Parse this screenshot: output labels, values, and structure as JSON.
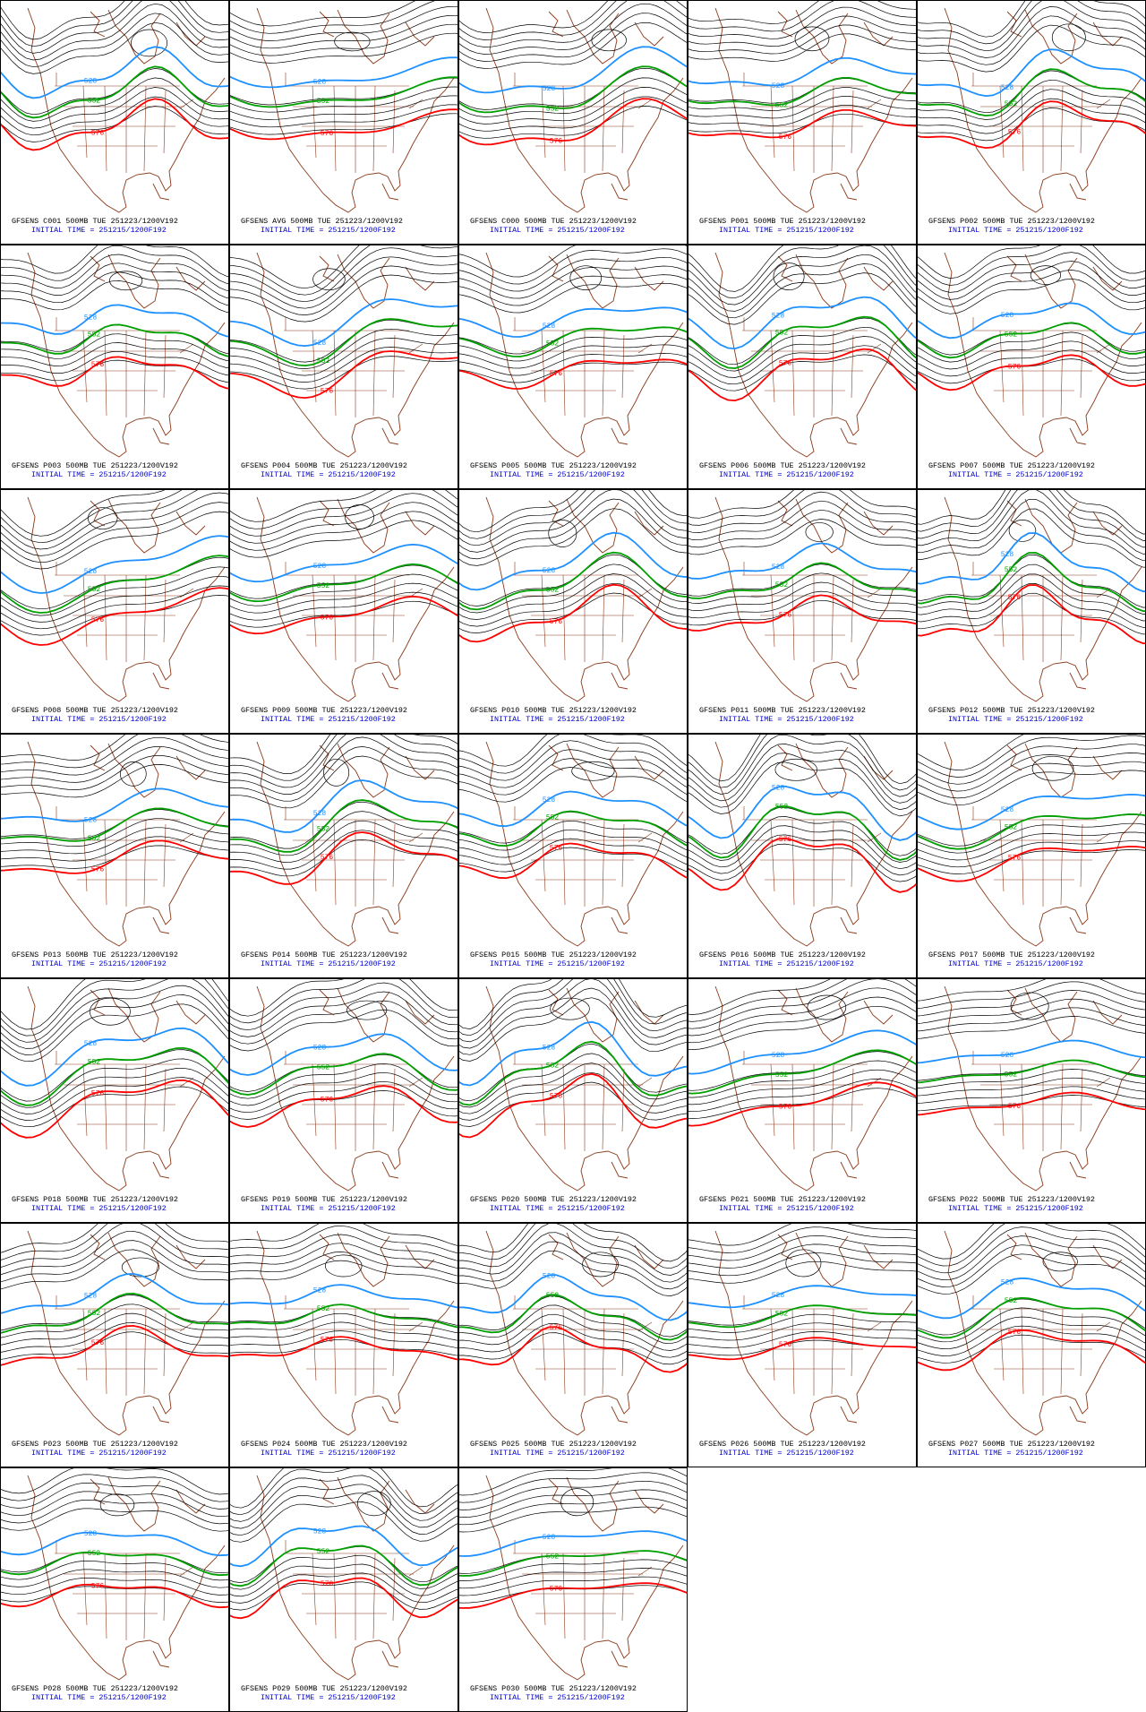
{
  "contour_labels": [
    "528",
    "552",
    "576"
  ],
  "panels": [
    {
      "title": "GFSENS C001 500MB TUE 251223/1200V192",
      "subtitle": "INITIAL TIME = 251215/1200F192"
    },
    {
      "title": "GFSENS AVG 500MB TUE 251223/1200V192",
      "subtitle": "INITIAL TIME = 251215/1200F192"
    },
    {
      "title": "GFSENS C000 500MB TUE 251223/1200V192",
      "subtitle": "INITIAL TIME = 251215/1200F192"
    },
    {
      "title": "GFSENS P001 500MB TUE 251223/1200V192",
      "subtitle": "INITIAL TIME = 251215/1200F192"
    },
    {
      "title": "GFSENS P002 500MB TUE 251223/1200V192",
      "subtitle": "INITIAL TIME = 251215/1200F192"
    },
    {
      "title": "GFSENS P003 500MB TUE 251223/1200V192",
      "subtitle": "INITIAL TIME = 251215/1200F192"
    },
    {
      "title": "GFSENS P004 500MB TUE 251223/1200V192",
      "subtitle": "INITIAL TIME = 251215/1200F192"
    },
    {
      "title": "GFSENS P005 500MB TUE 251223/1200V192",
      "subtitle": "INITIAL TIME = 251215/1200F192"
    },
    {
      "title": "GFSENS P006 500MB TUE 251223/1200V192",
      "subtitle": "INITIAL TIME = 251215/1200F192"
    },
    {
      "title": "GFSENS P007 500MB TUE 251223/1200V192",
      "subtitle": "INITIAL TIME = 251215/1200F192"
    },
    {
      "title": "GFSENS P008 500MB TUE 251223/1200V192",
      "subtitle": "INITIAL TIME = 251215/1200F192"
    },
    {
      "title": "GFSENS P009 500MB TUE 251223/1200V192",
      "subtitle": "INITIAL TIME = 251215/1200F192"
    },
    {
      "title": "GFSENS P010 500MB TUE 251223/1200V192",
      "subtitle": "INITIAL TIME = 251215/1200F192"
    },
    {
      "title": "GFSENS P011 500MB TUE 251223/1200V192",
      "subtitle": "INITIAL TIME = 251215/1200F192"
    },
    {
      "title": "GFSENS P012 500MB TUE 251223/1200V192",
      "subtitle": "INITIAL TIME = 251215/1200F192"
    },
    {
      "title": "GFSENS P013 500MB TUE 251223/1200V192",
      "subtitle": "INITIAL TIME = 251215/1200F192"
    },
    {
      "title": "GFSENS P014 500MB TUE 251223/1200V192",
      "subtitle": "INITIAL TIME = 251215/1200F192"
    },
    {
      "title": "GFSENS P015 500MB TUE 251223/1200V192",
      "subtitle": "INITIAL TIME = 251215/1200F192"
    },
    {
      "title": "GFSENS P016 500MB TUE 251223/1200V192",
      "subtitle": "INITIAL TIME = 251215/1200F192"
    },
    {
      "title": "GFSENS P017 500MB TUE 251223/1200V192",
      "subtitle": "INITIAL TIME = 251215/1200F192"
    },
    {
      "title": "GFSENS P018 500MB TUE 251223/1200V192",
      "subtitle": "INITIAL TIME = 251215/1200F192"
    },
    {
      "title": "GFSENS P019 500MB TUE 251223/1200V192",
      "subtitle": "INITIAL TIME = 251215/1200F192"
    },
    {
      "title": "GFSENS P020 500MB TUE 251223/1200V192",
      "subtitle": "INITIAL TIME = 251215/1200F192"
    },
    {
      "title": "GFSENS P021 500MB TUE 251223/1200V192",
      "subtitle": "INITIAL TIME = 251215/1200F192"
    },
    {
      "title": "GFSENS P022 500MB TUE 251223/1200V192",
      "subtitle": "INITIAL TIME = 251215/1200F192"
    },
    {
      "title": "GFSENS P023 500MB TUE 251223/1200V192",
      "subtitle": "INITIAL TIME = 251215/1200F192"
    },
    {
      "title": "GFSENS P024 500MB TUE 251223/1200V192",
      "subtitle": "INITIAL TIME = 251215/1200F192"
    },
    {
      "title": "GFSENS P025 500MB TUE 251223/1200V192",
      "subtitle": "INITIAL TIME = 251215/1200F192"
    },
    {
      "title": "GFSENS P026 500MB TUE 251223/1200V192",
      "subtitle": "INITIAL TIME = 251215/1200F192"
    },
    {
      "title": "GFSENS P027 500MB TUE 251223/1200V192",
      "subtitle": "INITIAL TIME = 251215/1200F192"
    },
    {
      "title": "GFSENS P028 500MB TUE 251223/1200V192",
      "subtitle": "INITIAL TIME = 251215/1200F192"
    },
    {
      "title": "GFSENS P029 500MB TUE 251223/1200V192",
      "subtitle": "INITIAL TIME = 251215/1200F192"
    },
    {
      "title": "GFSENS P030 500MB TUE 251223/1200V192",
      "subtitle": "INITIAL TIME = 251215/1200F192"
    }
  ]
}
